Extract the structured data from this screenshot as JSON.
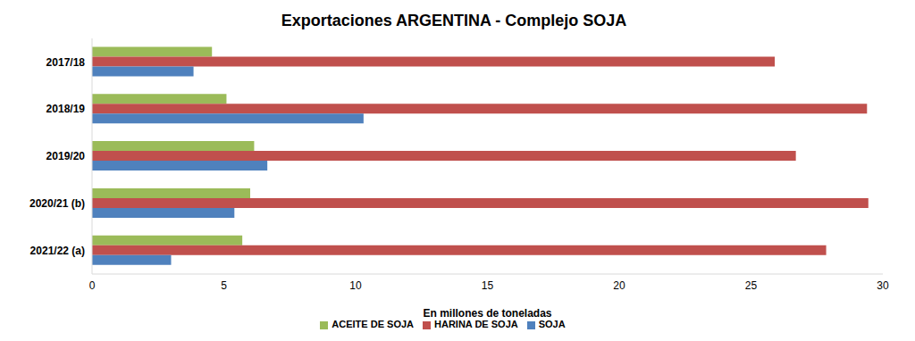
{
  "chart_data": {
    "type": "bar",
    "title": "Exportaciones ARGENTINA - Complejo SOJA",
    "orientation": "horizontal",
    "x_label": "En millones de toneladas",
    "categories": [
      "2017/18",
      "2018/19",
      "2019/20",
      "2020/21 (b)",
      "2021/22 (a)"
    ],
    "series": [
      {
        "name": "ACEITE DE SOJA",
        "color": "#9bbb59",
        "values": [
          4.55,
          5.1,
          6.15,
          6.0,
          5.7
        ]
      },
      {
        "name": "HARINA DE SOJA",
        "color": "#c0504d",
        "values": [
          25.9,
          29.4,
          26.7,
          29.45,
          27.85
        ]
      },
      {
        "name": "SOJA",
        "color": "#4f81bd",
        "values": [
          3.85,
          10.3,
          6.65,
          5.4,
          3.0
        ]
      }
    ],
    "xlim": [
      0,
      30
    ],
    "xticks": [
      0,
      5,
      10,
      15,
      20,
      25,
      30
    ],
    "grid": false,
    "legend": "bottom"
  }
}
